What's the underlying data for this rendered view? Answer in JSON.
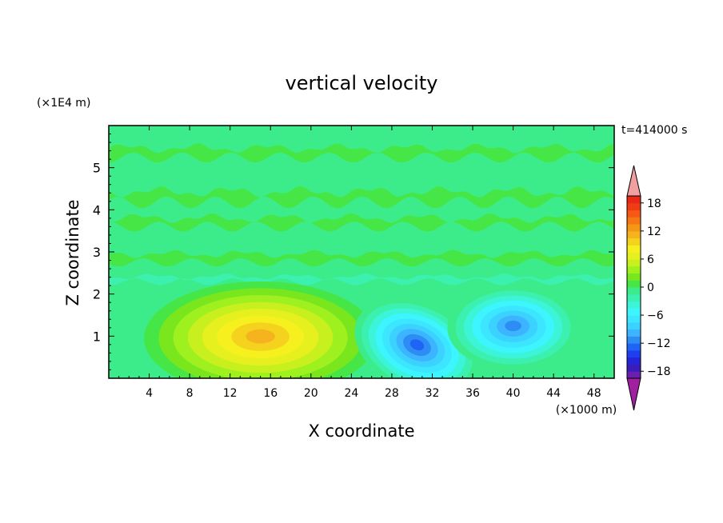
{
  "chart_data": {
    "type": "heatmap",
    "title": "vertical velocity",
    "xlabel": "X coordinate",
    "ylabel": "Z coordinate",
    "x_unit": "(×1000 m)",
    "y_unit": "(×1E4 m)",
    "time_label": "t=414000 s",
    "xlim": [
      0,
      50
    ],
    "ylim": [
      0,
      6
    ],
    "x_ticks": [
      4,
      8,
      12,
      16,
      20,
      24,
      28,
      32,
      36,
      40,
      44,
      48
    ],
    "y_ticks": [
      1,
      2,
      3,
      4,
      5
    ],
    "colorbar": {
      "levels": [
        -21,
        -19.5,
        -18,
        -16.5,
        -15,
        -13.5,
        -12,
        -10.5,
        -9,
        -7.5,
        -6,
        -4.5,
        -3,
        -1.5,
        0,
        1.5,
        3,
        4.5,
        6,
        7.5,
        9,
        10.5,
        12,
        13.5,
        15,
        16.5,
        18,
        19.5,
        21
      ],
      "tick_values": [
        18,
        12,
        6,
        0,
        -6,
        -12,
        -18
      ],
      "tick_labels": [
        "18",
        "12",
        "6",
        "0",
        "−6",
        "−12",
        "−18"
      ],
      "colors": [
        "#a020a0",
        "#6a1fb0",
        "#3a1db8",
        "#2424d8",
        "#1e3ef0",
        "#1e64f5",
        "#2e8cf5",
        "#3cb4ff",
        "#3cd2ff",
        "#3ce6ff",
        "#3cf5ff",
        "#3cf5d8",
        "#3cf0b0",
        "#3cec8a",
        "#46e646",
        "#7ae61e",
        "#9ef01e",
        "#c8f01e",
        "#e6f01e",
        "#f5f01e",
        "#f5d21e",
        "#f5b41e",
        "#f59614",
        "#f57814",
        "#f55a14",
        "#f03c14",
        "#e62814",
        "#f0a0a0"
      ]
    },
    "features": [
      {
        "kind": "updraft",
        "center": [
          15,
          0.95
        ],
        "peak_value": 10.5
      },
      {
        "kind": "downdraft",
        "center": [
          30.5,
          0.75
        ],
        "peak_value": -13.5
      },
      {
        "kind": "downdraft",
        "center": [
          40,
          1.2
        ],
        "peak_value": -12
      }
    ],
    "background_value_range": [
      -3,
      1.5
    ]
  }
}
